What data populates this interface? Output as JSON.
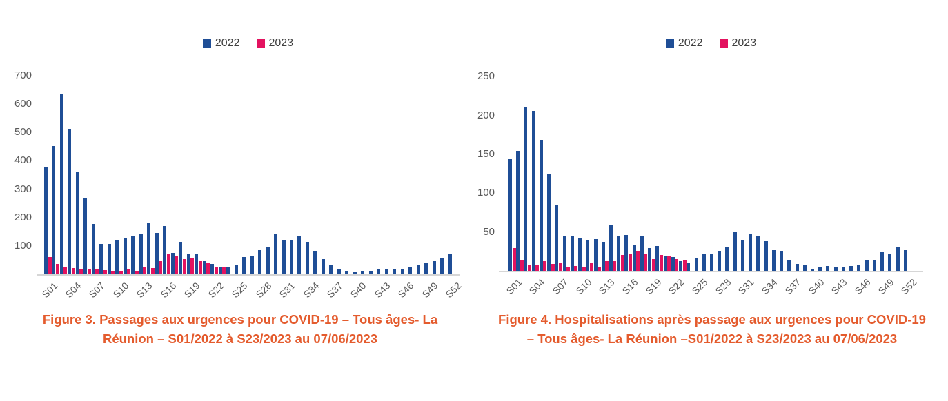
{
  "page": {
    "background": "#FFFFFF"
  },
  "colors": {
    "series_2022": "#1F4E96",
    "series_2023": "#E3125F",
    "caption_text": "#E45B2D",
    "axis_text": "#595959",
    "legend_text": "#404040",
    "axis_line": "#D6D6D6"
  },
  "legend": {
    "items": [
      {
        "label": "2022",
        "color": "#1F4E96"
      },
      {
        "label": "2023",
        "color": "#E3125F"
      }
    ]
  },
  "chart_data": [
    {
      "id": "figure3",
      "type": "bar",
      "title": "Figure 3. Passages aux urgences pour COVID-19 – Tous âges- La Réunion – S01/2022 à S23/2023 au 07/06/2023",
      "legend_position": "top-center",
      "grid": false,
      "ylim": [
        0,
        700
      ],
      "y_ticks": [
        700,
        600,
        500,
        400,
        300,
        200,
        100
      ],
      "categories": [
        "S01",
        "S02",
        "S03",
        "S04",
        "S05",
        "S06",
        "S07",
        "S08",
        "S09",
        "S10",
        "S11",
        "S12",
        "S13",
        "S14",
        "S15",
        "S16",
        "S17",
        "S18",
        "S19",
        "S20",
        "S21",
        "S22",
        "S23",
        "S24",
        "S25",
        "S26",
        "S27",
        "S28",
        "S29",
        "S30",
        "S31",
        "S32",
        "S33",
        "S34",
        "S35",
        "S36",
        "S37",
        "S38",
        "S39",
        "S40",
        "S41",
        "S42",
        "S43",
        "S44",
        "S45",
        "S46",
        "S47",
        "S48",
        "S49",
        "S50",
        "S51",
        "S52"
      ],
      "x_tick_labels": [
        "S01",
        "S04",
        "S07",
        "S10",
        "S13",
        "S16",
        "S19",
        "S22",
        "S25",
        "S28",
        "S31",
        "S34",
        "S37",
        "S40",
        "S43",
        "S46",
        "S49",
        "S52"
      ],
      "series": [
        {
          "name": "2022",
          "color": "#1F4E96",
          "values": [
            380,
            452,
            638,
            514,
            361,
            271,
            178,
            106,
            108,
            120,
            126,
            134,
            140,
            181,
            145,
            171,
            76,
            114,
            71,
            73,
            46,
            37,
            27,
            27,
            32,
            61,
            63,
            84,
            98,
            140,
            121,
            118,
            135,
            115,
            79,
            53,
            34,
            18,
            12,
            8,
            12,
            12,
            17,
            18,
            19,
            20,
            25,
            33,
            40,
            47,
            57,
            72
          ]
        },
        {
          "name": "2023",
          "color": "#E3125F",
          "values": [
            60,
            36,
            25,
            22,
            17,
            17,
            20,
            15,
            13,
            11,
            20,
            11,
            25,
            23,
            46,
            72,
            65,
            54,
            59,
            45,
            42,
            27,
            24
          ]
        }
      ]
    },
    {
      "id": "figure4",
      "type": "bar",
      "title": "Figure 4. Hospitalisations après passage aux urgences pour COVID-19 – Tous âges- La Réunion –S01/2022 à S23/2023 au 07/06/2023",
      "legend_position": "top-center",
      "grid": false,
      "ylim": [
        0,
        250
      ],
      "y_ticks": [
        250,
        200,
        150,
        100,
        50
      ],
      "categories": [
        "S01",
        "S02",
        "S03",
        "S04",
        "S05",
        "S06",
        "S07",
        "S08",
        "S09",
        "S10",
        "S11",
        "S12",
        "S13",
        "S14",
        "S15",
        "S16",
        "S17",
        "S18",
        "S19",
        "S20",
        "S21",
        "S22",
        "S23",
        "S24",
        "S25",
        "S26",
        "S27",
        "S28",
        "S29",
        "S30",
        "S31",
        "S32",
        "S33",
        "S34",
        "S35",
        "S36",
        "S37",
        "S38",
        "S39",
        "S40",
        "S41",
        "S42",
        "S43",
        "S44",
        "S45",
        "S46",
        "S47",
        "S48",
        "S49",
        "S50",
        "S51",
        "S52"
      ],
      "x_tick_labels": [
        "S01",
        "S04",
        "S07",
        "S10",
        "S13",
        "S16",
        "S19",
        "S22",
        "S25",
        "S28",
        "S31",
        "S34",
        "S37",
        "S40",
        "S43",
        "S46",
        "S49",
        "S52"
      ],
      "series": [
        {
          "name": "2022",
          "color": "#1F4E96",
          "values": [
            144,
            154,
            211,
            206,
            169,
            125,
            85,
            44,
            45,
            42,
            40,
            41,
            37,
            59,
            45,
            46,
            34,
            44,
            29,
            32,
            19,
            18,
            12,
            11,
            17,
            22,
            21,
            25,
            30,
            51,
            40,
            47,
            45,
            38,
            27,
            25,
            13,
            9,
            7,
            2,
            4,
            6,
            4,
            4,
            6,
            8,
            14,
            13,
            24,
            22,
            30,
            27
          ]
        },
        {
          "name": "2023",
          "color": "#E3125F",
          "values": [
            29,
            14,
            7,
            8,
            12,
            9,
            10,
            5,
            6,
            4,
            11,
            4,
            12,
            12,
            20,
            22,
            25,
            22,
            15,
            20,
            19,
            15,
            13
          ]
        }
      ]
    }
  ]
}
